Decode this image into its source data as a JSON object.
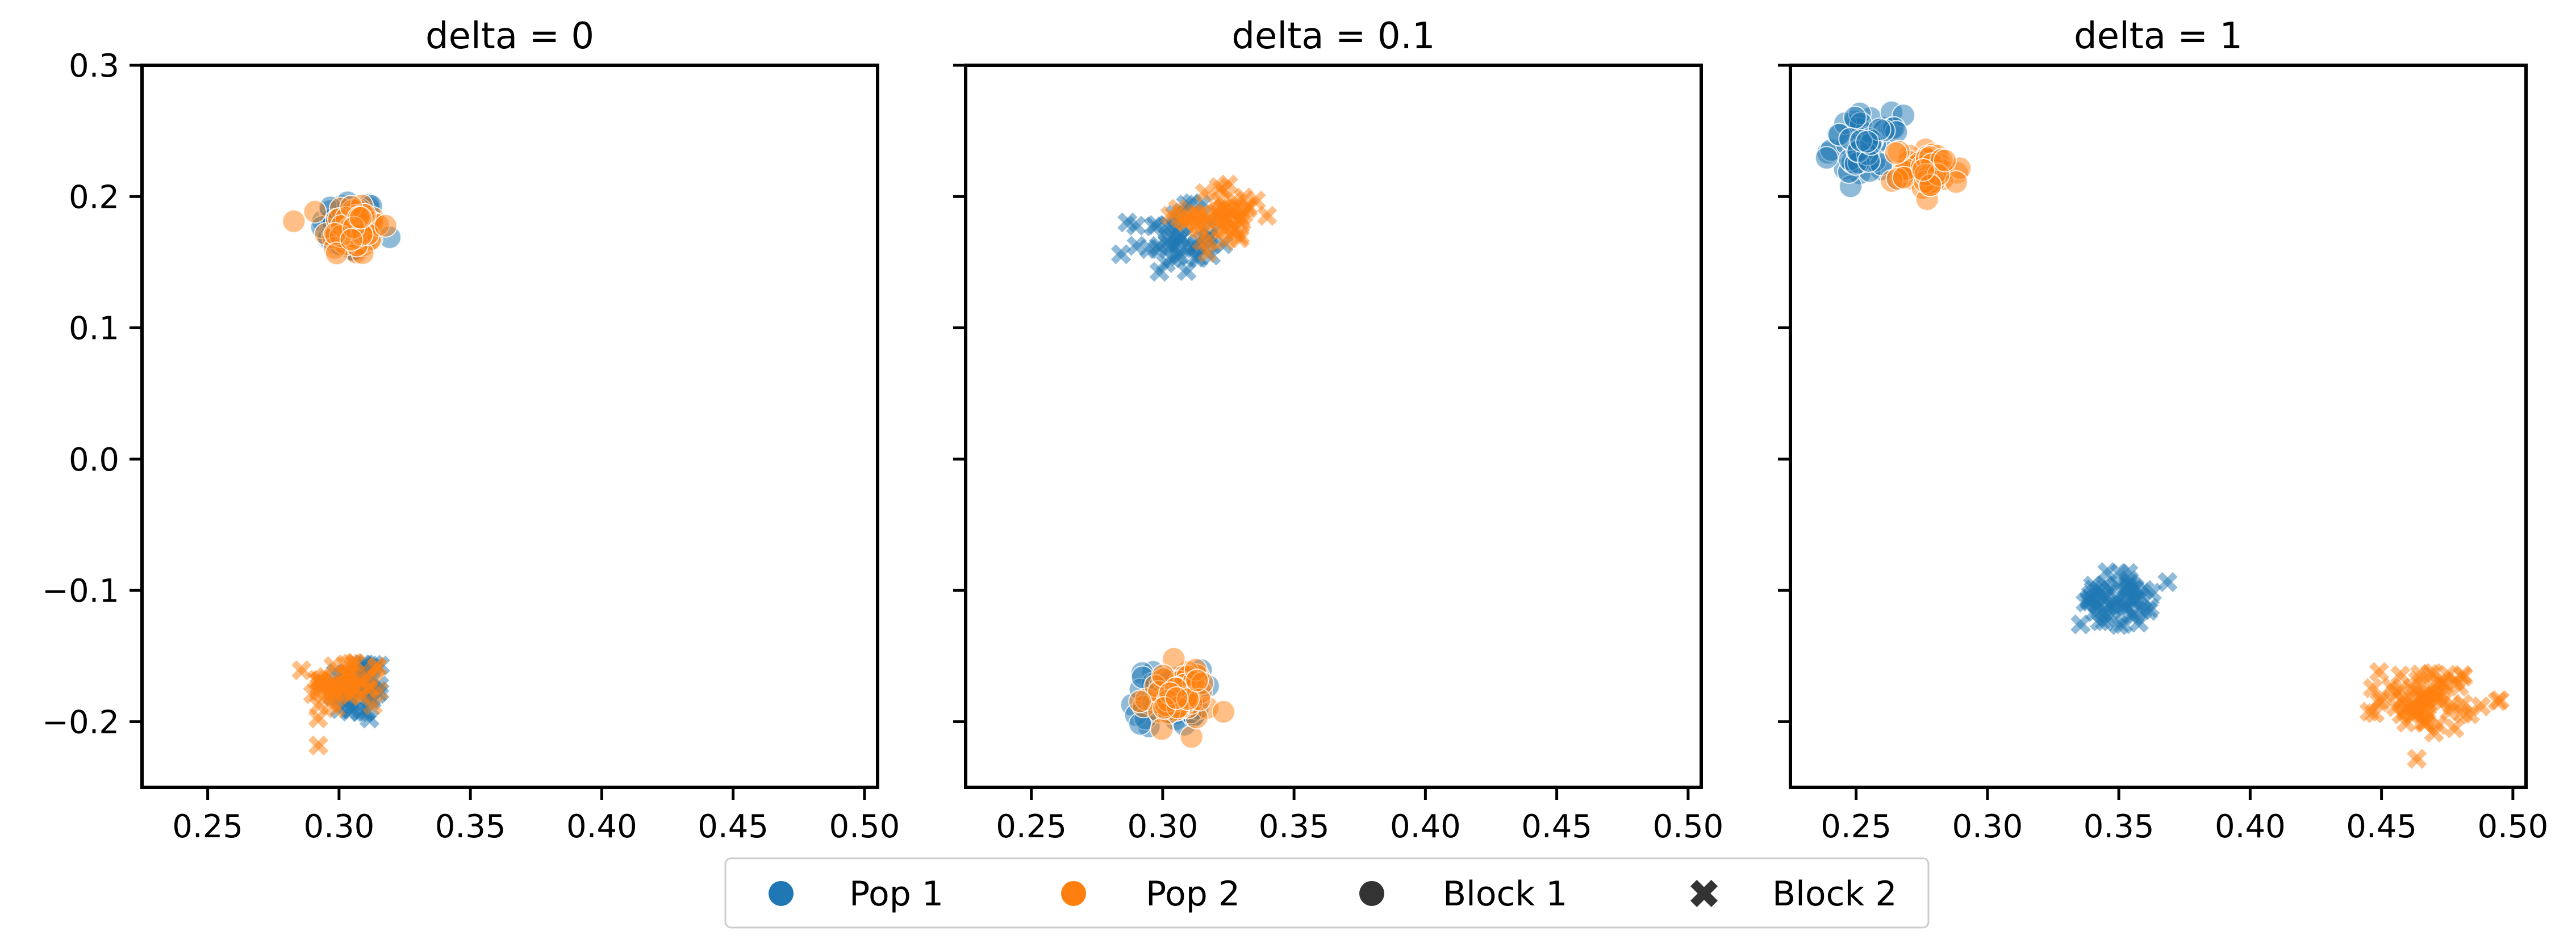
{
  "chart_data": {
    "type": "scatter",
    "legend": {
      "placement": "bottom-center",
      "entries": [
        {
          "label": "Pop 1",
          "marker": "circle",
          "color": "#1f77b4"
        },
        {
          "label": "Pop 2",
          "marker": "circle",
          "color": "#ff7f0e"
        },
        {
          "label": "Block 1",
          "marker": "circle",
          "color": "#333333"
        },
        {
          "label": "Block 2",
          "marker": "cross",
          "color": "#333333"
        }
      ]
    },
    "shared_y_axis": true,
    "xlim": [
      0.225,
      0.505
    ],
    "ylim": [
      -0.25,
      0.3
    ],
    "xticks": [
      "0.25",
      "0.30",
      "0.35",
      "0.40",
      "0.45",
      "0.50"
    ],
    "yticks": [
      "0.3",
      "0.2",
      "0.1",
      "0.0",
      "−0.1",
      "−0.2"
    ],
    "colors": {
      "Pop 1": "#1f77b4",
      "Pop 2": "#ff7f0e"
    },
    "marker_alpha": 0.5,
    "panels": [
      {
        "title": "delta = 0",
        "clusters": [
          {
            "series": "Pop 1",
            "block": "Block 1",
            "center": [
              0.304,
              0.177
            ],
            "spread": [
              0.0055,
              0.011
            ],
            "n": 60
          },
          {
            "series": "Pop 2",
            "block": "Block 1",
            "center": [
              0.305,
              0.176
            ],
            "spread": [
              0.0055,
              0.011
            ],
            "n": 60
          },
          {
            "series": "Pop 1",
            "block": "Block 2",
            "center": [
              0.307,
              -0.175
            ],
            "spread": [
              0.006,
              0.013
            ],
            "n": 50
          },
          {
            "series": "Pop 2",
            "block": "Block 2",
            "center": [
              0.303,
              -0.172
            ],
            "spread": [
              0.007,
              0.011
            ],
            "n": 50
          }
        ]
      },
      {
        "title": "delta = 0.1",
        "clusters": [
          {
            "series": "Pop 1",
            "block": "Block 2",
            "center": [
              0.304,
              0.166
            ],
            "spread": [
              0.008,
              0.012
            ],
            "n": 45
          },
          {
            "series": "Pop 2",
            "block": "Block 2",
            "center": [
              0.323,
              0.185
            ],
            "spread": [
              0.008,
              0.012
            ],
            "n": 50
          },
          {
            "series": "Pop 1",
            "block": "Block 1",
            "center": [
              0.302,
              -0.182
            ],
            "spread": [
              0.0065,
              0.011
            ],
            "n": 55
          },
          {
            "series": "Pop 2",
            "block": "Block 1",
            "center": [
              0.305,
              -0.18
            ],
            "spread": [
              0.0065,
              0.011
            ],
            "n": 55
          }
        ]
      },
      {
        "title": "delta = 1",
        "clusters": [
          {
            "series": "Pop 1",
            "block": "Block 1",
            "center": [
              0.254,
              0.238
            ],
            "spread": [
              0.0065,
              0.012
            ],
            "n": 55
          },
          {
            "series": "Pop 2",
            "block": "Block 1",
            "center": [
              0.277,
              0.22
            ],
            "spread": [
              0.0065,
              0.008
            ],
            "n": 55
          },
          {
            "series": "Pop 1",
            "block": "Block 2",
            "center": [
              0.349,
              -0.107
            ],
            "spread": [
              0.0065,
              0.01
            ],
            "n": 55
          },
          {
            "series": "Pop 2",
            "block": "Block 2",
            "center": [
              0.468,
              -0.182
            ],
            "spread": [
              0.009,
              0.012
            ],
            "n": 65
          }
        ]
      }
    ]
  }
}
